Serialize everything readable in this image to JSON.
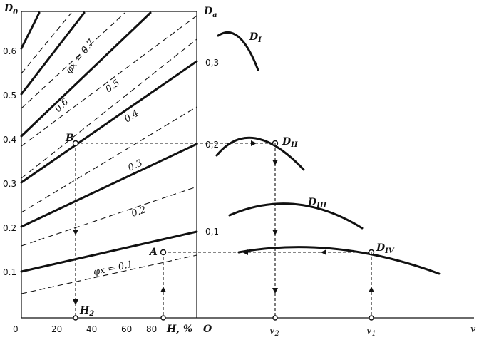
{
  "left_chart": {
    "y_axis_title": "D",
    "y_axis_sub": "0",
    "y_ticks": [
      "0.1",
      "0.2",
      "0.3",
      "0.4",
      "0.5",
      "0.6"
    ],
    "x_ticks": [
      "0",
      "20",
      "40",
      "60",
      "80"
    ],
    "x_axis_title": "H, %",
    "h2_marker": "H",
    "h2_sub": "2",
    "psi_labels": [
      "φx = 0.1",
      "0.2",
      "0.3",
      "0.4",
      "0.5",
      "0.6",
      "φx = 0.7"
    ],
    "point_b": "B",
    "point_a": "A"
  },
  "right_chart": {
    "y_axis_title": "D",
    "y_axis_sub": "a",
    "y_ticks": [
      "0,1",
      "0,2",
      "0,3"
    ],
    "origin": "O",
    "x_axis_title": "v",
    "v2": "v",
    "v2_sub": "2",
    "v1": "v",
    "v1_sub": "1",
    "curves": [
      {
        "name": "D",
        "sub": "I"
      },
      {
        "name": "D",
        "sub": "II"
      },
      {
        "name": "D",
        "sub": "III"
      },
      {
        "name": "D",
        "sub": "IV"
      }
    ]
  }
}
